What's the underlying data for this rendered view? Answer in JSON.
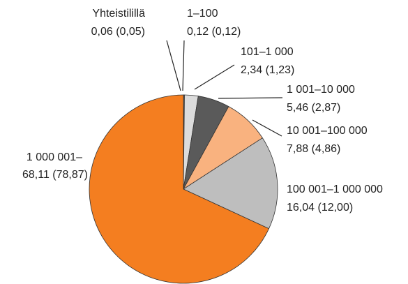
{
  "chart_data": {
    "type": "pie",
    "categories": [
      "Yhteistilillä",
      "1–100",
      "101–1 000",
      "1 001–10 000",
      "10 001–100 000",
      "100 001–1 000 000",
      "1 000 001–"
    ],
    "values": [
      0.06,
      0.12,
      2.34,
      5.46,
      7.88,
      16.04,
      68.11
    ],
    "value_labels": [
      "0,06 (0,05)",
      "0,12 (0,12)",
      "2,34 (1,23)",
      "5,46 (2,87)",
      "7,88  (4,86)",
      "16,04 (12,00)",
      "68,11 (78,87)"
    ],
    "colors": [
      "#ffffff",
      "#ffffff",
      "#dcdcdc",
      "#5a5a5a",
      "#f9b27f",
      "#bebebe",
      "#f47e20"
    ],
    "start_angle": 0,
    "direction": "clockwise"
  }
}
